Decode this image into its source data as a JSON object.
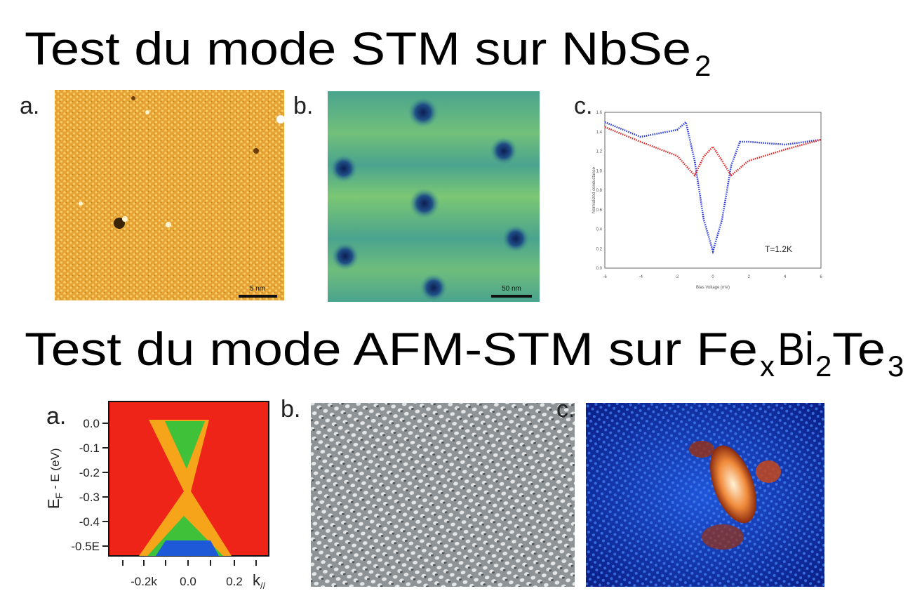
{
  "sections": [
    {
      "title": {
        "segments": [
          {
            "text": "Test du mode STM sur NbSe",
            "subscript": "2"
          }
        ]
      },
      "panels": [
        {
          "label": "a.",
          "scale_bar": "5 nm"
        },
        {
          "label": "b.",
          "scale_bar": "50 nm"
        },
        {
          "label": "c.",
          "y_axis_label": "Normalized conductance",
          "x_axis_label": "Bias Voltage (mV)",
          "annotation": "T=1.2K",
          "yticks": [
            "1.6",
            "1.4",
            "1.2",
            "1.0",
            "0.8",
            "0.6",
            "0.4",
            "0.2",
            "0.0"
          ],
          "xticks": [
            "-6",
            "-4",
            "-2",
            "0",
            "2",
            "4",
            "6"
          ]
        }
      ]
    },
    {
      "title": {
        "segments": [
          {
            "text": "Test du mode AFM-STM sur Fe",
            "subscript": "x"
          },
          {
            "text": "Bi",
            "subscript": "2"
          },
          {
            "text": "Te",
            "subscript": "3"
          }
        ]
      },
      "panels": [
        {
          "label": "a.",
          "y_axis_label": {
            "text": "E",
            "subscript": "F",
            "rest": " - E (eV)"
          },
          "yticks": [
            "0.0",
            "-0.1",
            "-0.2",
            "-0.3",
            "-0.4",
            "-0.5E"
          ],
          "xticks": [
            "-0.2k",
            "0.0",
            "0.2"
          ],
          "x_axis_label": {
            "text": "k",
            "subscript": "//"
          }
        },
        {
          "label": "b."
        },
        {
          "label": "c."
        }
      ]
    }
  ]
}
